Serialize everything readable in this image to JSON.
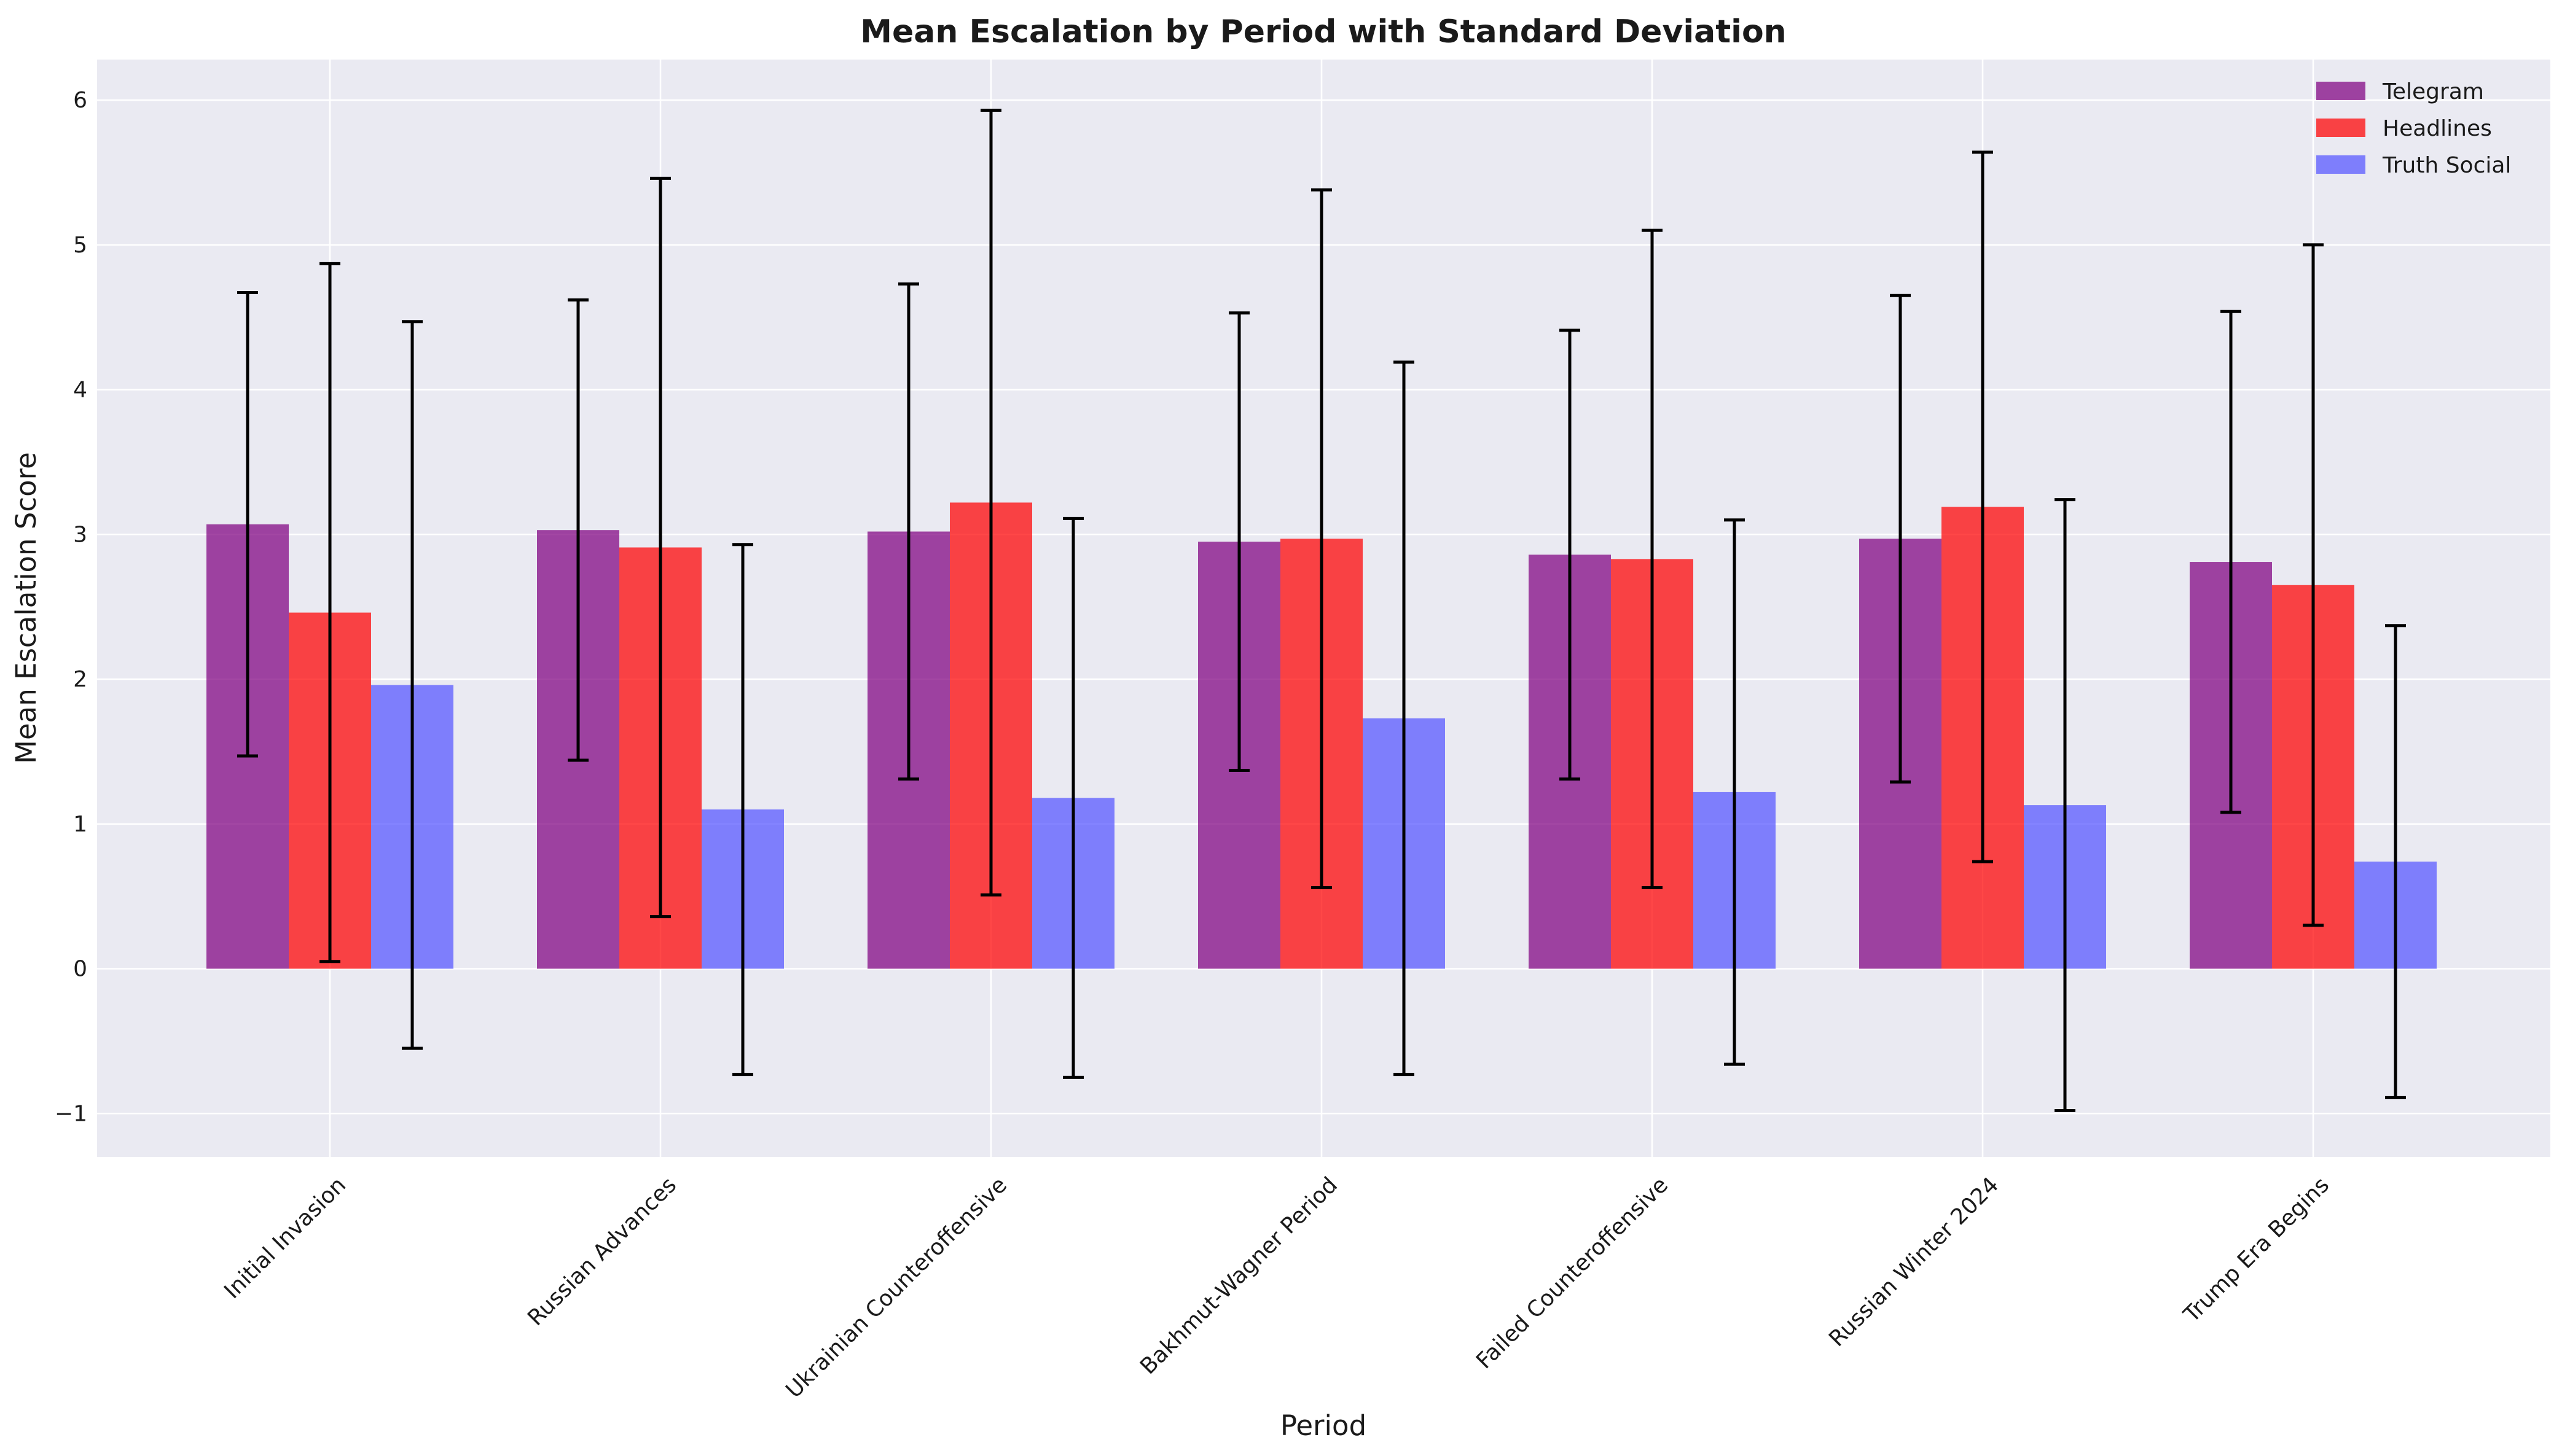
{
  "chart_data": {
    "type": "bar",
    "title": "Mean Escalation by Period with Standard Deviation",
    "xlabel": "Period",
    "ylabel": "Mean Escalation Score",
    "ylim": [
      -1.3,
      6.28
    ],
    "yticks": [
      -1,
      0,
      1,
      2,
      3,
      4,
      5,
      6
    ],
    "ytick_labels": [
      "−1",
      "0",
      "1",
      "2",
      "3",
      "4",
      "5",
      "6"
    ],
    "grid": true,
    "legend_position": "top-right",
    "categories": [
      "Initial Invasion",
      "Russian Advances",
      "Ukrainian Counteroffensive",
      "Bakhmut-Wagner Period",
      "Failed Counteroffensive",
      "Russian Winter 2024",
      "Trump Era Begins"
    ],
    "series": [
      {
        "name": "Telegram",
        "color": "#800080",
        "values": [
          3.07,
          3.03,
          3.02,
          2.95,
          2.86,
          2.97,
          2.81
        ],
        "std": [
          1.6,
          1.59,
          1.71,
          1.58,
          1.55,
          1.68,
          1.73
        ]
      },
      {
        "name": "Headlines",
        "color": "#ff0000",
        "values": [
          2.46,
          2.91,
          3.22,
          2.97,
          2.83,
          3.19,
          2.65
        ],
        "std": [
          2.41,
          2.55,
          2.71,
          2.41,
          2.27,
          2.45,
          2.35
        ]
      },
      {
        "name": "Truth Social",
        "color": "#5555ff",
        "values": [
          1.96,
          1.1,
          1.18,
          1.73,
          1.22,
          1.13,
          0.74
        ],
        "std": [
          2.51,
          1.83,
          1.93,
          2.46,
          1.88,
          2.11,
          1.63
        ]
      }
    ]
  }
}
